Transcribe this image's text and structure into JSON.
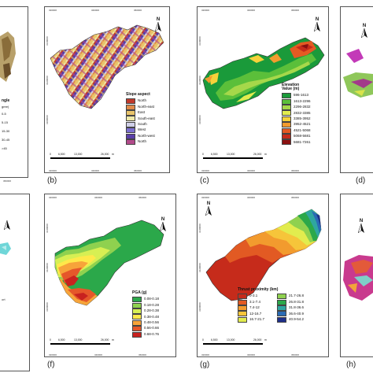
{
  "panels": {
    "b": {
      "caption": "(b)",
      "legend_title": "Slope aspect",
      "legend": [
        {
          "label": "North",
          "color": "#c0392b"
        },
        {
          "label": "North-east",
          "color": "#e08a4a"
        },
        {
          "label": "East",
          "color": "#e9c46a"
        },
        {
          "label": "South-east",
          "color": "#efe9a8"
        },
        {
          "label": "South",
          "color": "#cfcfe8"
        },
        {
          "label": "West",
          "color": "#7b6fd0"
        },
        {
          "label": "North-west",
          "color": "#5a3ea8"
        },
        {
          "label": "North",
          "color": "#b24a8a"
        }
      ],
      "scale": {
        "ticks": [
          "0",
          "6,500",
          "13,000",
          "26,000"
        ],
        "unit": "m"
      },
      "x_ticks": [
        "320000",
        "340000",
        "360000"
      ],
      "y_ticks": [
        "3140000",
        "3120000",
        "3100000"
      ]
    },
    "c": {
      "caption": "(c)",
      "legend_title": "Elevation",
      "legend_subtitle": "Value (m)",
      "legend": [
        {
          "label": "596-1613",
          "color": "#1a9a3a"
        },
        {
          "label": "1613-2296",
          "color": "#5bbf3a"
        },
        {
          "label": "2296-2832",
          "color": "#a6d84a"
        },
        {
          "label": "2832-3385",
          "color": "#e2ec4e"
        },
        {
          "label": "3385-3952",
          "color": "#f6d23a"
        },
        {
          "label": "3952-4521",
          "color": "#f29b2e"
        },
        {
          "label": "4521-5068",
          "color": "#e45a23"
        },
        {
          "label": "5068-5681",
          "color": "#c62b1b"
        },
        {
          "label": "5681-7261",
          "color": "#8b1010"
        }
      ],
      "scale": {
        "ticks": [
          "0",
          "6,500",
          "13,000",
          "26,000"
        ],
        "unit": "m"
      },
      "x_ticks": [
        "320000",
        "340000",
        "360000"
      ],
      "y_ticks": [
        "3140000",
        "3120000",
        "3100000"
      ]
    },
    "f": {
      "caption": "(f)",
      "legend_title": "PGA (g)",
      "legend": [
        {
          "label": "0.08-0.18",
          "color": "#2ba84a"
        },
        {
          "label": "0.18-0.28",
          "color": "#8fd14f"
        },
        {
          "label": "0.28-0.38",
          "color": "#d7ef53"
        },
        {
          "label": "0.38-0.48",
          "color": "#ffe94a"
        },
        {
          "label": "0.48-0.56",
          "color": "#f7a43a"
        },
        {
          "label": "0.56-0.66",
          "color": "#e5572a"
        },
        {
          "label": "0.68-0.76",
          "color": "#c8221f"
        }
      ],
      "scale": {
        "ticks": [
          "0",
          "6,500",
          "13,000",
          "26,000"
        ],
        "unit": "m"
      },
      "x_ticks": [
        "320000",
        "340000",
        "360000"
      ],
      "y_ticks": [
        "3140000",
        "3120000",
        "3100000"
      ]
    },
    "g": {
      "caption": "(g)",
      "legend_title": "Thrust proximity (km)",
      "legend_left": [
        {
          "label": "0-3.1",
          "color": "#c62b1b"
        },
        {
          "label": "3.1-7.4",
          "color": "#e25a23"
        },
        {
          "label": "7.4-12",
          "color": "#f29b2e"
        },
        {
          "label": "12-16.7",
          "color": "#f6c53a"
        },
        {
          "label": "16.7-21.7",
          "color": "#e2ec4e"
        }
      ],
      "legend_right": [
        {
          "label": "21.7-26.8",
          "color": "#8fd14f"
        },
        {
          "label": "26.8-31.8",
          "color": "#2ba84a"
        },
        {
          "label": "31.8-36.6",
          "color": "#2fa6a0"
        },
        {
          "label": "36.6-40.9",
          "color": "#2a6bb4"
        },
        {
          "label": "40.9-54.2",
          "color": "#1e2f8a"
        }
      ],
      "scale": {
        "ticks": [
          "0",
          "6,500",
          "13,000",
          "26,000"
        ],
        "unit": "m"
      },
      "x_ticks": [
        "320000",
        "340000",
        "360000"
      ],
      "y_ticks": [
        "3140000",
        "3120000",
        "3100000"
      ]
    },
    "a": {
      "legend_fragment": [
        "ngle",
        "gree)",
        "0-5",
        "5-15",
        "15-30",
        "30-45",
        ">45"
      ],
      "ticks_bottom": [
        "360000"
      ]
    },
    "d": {
      "caption": "(d)"
    },
    "e": {
      "fragment_lines": [
        "ort"
      ]
    },
    "h": {
      "caption": "(h)"
    }
  },
  "north_label": "N"
}
